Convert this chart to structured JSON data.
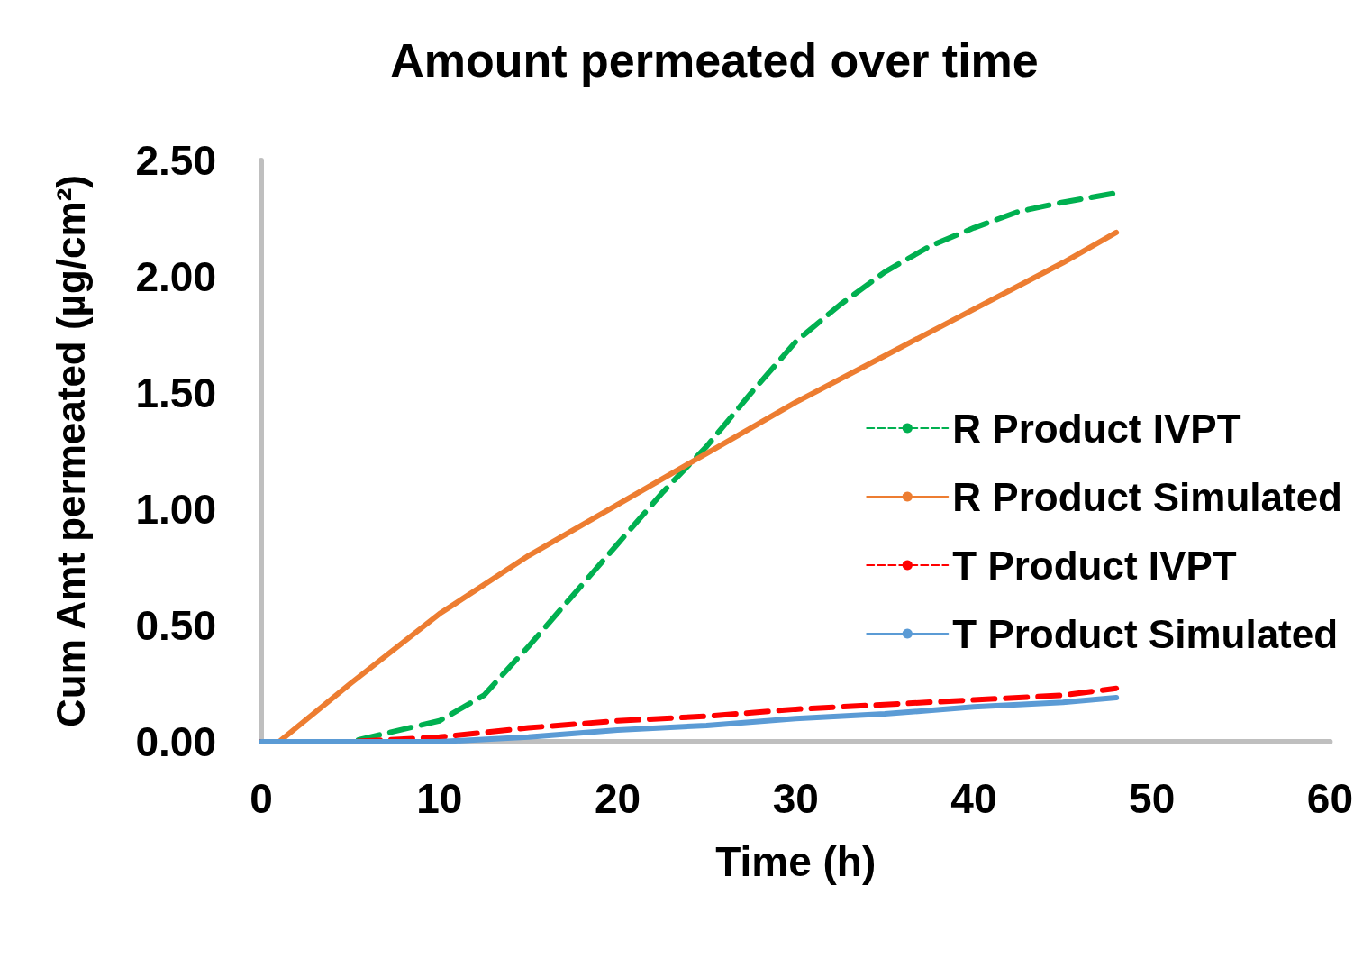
{
  "chart_data": {
    "type": "line",
    "title": "Amount permeated over time",
    "xlabel": "Time (h)",
    "ylabel": "Cum Amt permeated (µg/cm²)",
    "xlim": [
      0,
      60
    ],
    "xticks": [
      0,
      10,
      20,
      30,
      40,
      50,
      60
    ],
    "ylim": [
      0,
      2.5
    ],
    "yticks": [
      {
        "value": 0,
        "label": "0.00"
      },
      {
        "value": 0.5,
        "label": "0.50"
      },
      {
        "value": 1,
        "label": "1.00"
      },
      {
        "value": 1.5,
        "label": "1.50"
      },
      {
        "value": 2,
        "label": "2.00"
      },
      {
        "value": 2.5,
        "label": "2.50"
      }
    ],
    "grid": false,
    "legend": "right",
    "marker": "none",
    "series": [
      {
        "name": "R Product IVPT",
        "color": "#00b050",
        "line_style": "dashed",
        "x": [
          0,
          5,
          10,
          12.5,
          15,
          17.5,
          20,
          22.5,
          25,
          27.5,
          30,
          32.5,
          35,
          37.5,
          40,
          42.5,
          45,
          48
        ],
        "values": [
          0,
          0,
          0.09,
          0.2,
          0.41,
          0.63,
          0.85,
          1.07,
          1.27,
          1.5,
          1.72,
          1.88,
          2.02,
          2.13,
          2.21,
          2.28,
          2.32,
          2.36
        ]
      },
      {
        "name": "R Product Simulated",
        "color": "#ed7d31",
        "line_style": "solid",
        "x": [
          0,
          1,
          5,
          10,
          15,
          20,
          25,
          30,
          35,
          40,
          45,
          48
        ],
        "values": [
          0,
          0,
          0.25,
          0.55,
          0.8,
          1.02,
          1.24,
          1.46,
          1.66,
          1.86,
          2.06,
          2.19
        ]
      },
      {
        "name": "T Product IVPT",
        "color": "#ff0000",
        "line_style": "dashed",
        "x": [
          0,
          5,
          10,
          15,
          20,
          25,
          30,
          35,
          40,
          45,
          48
        ],
        "values": [
          0,
          0,
          0.02,
          0.06,
          0.09,
          0.11,
          0.14,
          0.16,
          0.18,
          0.2,
          0.23
        ]
      },
      {
        "name": "T Product Simulated",
        "color": "#5b9bd5",
        "line_style": "solid",
        "x": [
          0,
          10,
          15,
          20,
          25,
          30,
          35,
          40,
          45,
          48
        ],
        "values": [
          0,
          0,
          0.02,
          0.05,
          0.07,
          0.1,
          0.12,
          0.15,
          0.17,
          0.19
        ]
      }
    ]
  }
}
